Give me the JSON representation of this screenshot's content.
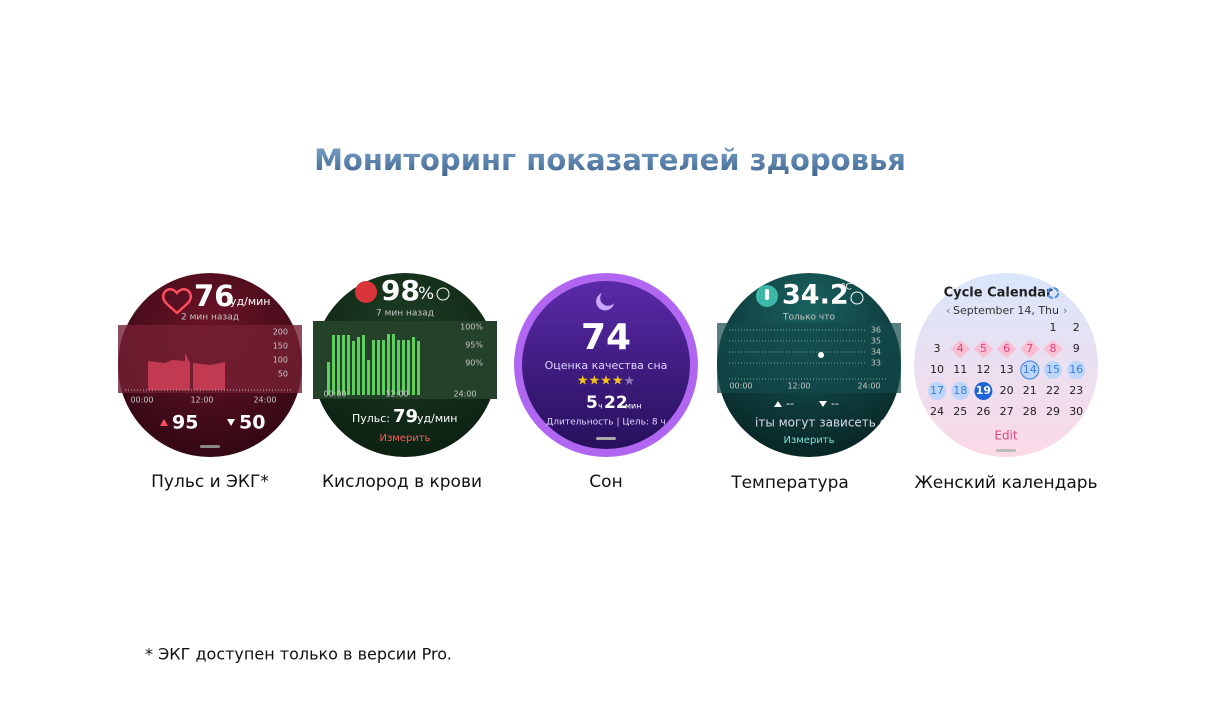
{
  "title": "Мониторинг показателей здоровья",
  "watches": [
    {
      "caption": "Пульс и ЭКГ*",
      "screen": {
        "value": "76",
        "unit": "уд/мин",
        "subtitle": "2 мин назад",
        "scale": [
          "200",
          "150",
          "100",
          "50"
        ],
        "times": [
          "00:00",
          "12:00",
          "24:00"
        ],
        "max": "95",
        "min": "50"
      }
    },
    {
      "caption": "Кислород в крови",
      "screen": {
        "value": "98",
        "unit": "%",
        "subtitle": "7 мин назад",
        "scale": [
          "100%",
          "95%",
          "90%"
        ],
        "times": [
          "00:00",
          "12:00",
          "24:00"
        ],
        "pulse_label": "Пульс:",
        "pulse_value": "79",
        "pulse_unit": "уд/мин",
        "action": "Измерить"
      }
    },
    {
      "caption": "Сон",
      "screen": {
        "value": "74",
        "label": "Оценка качества сна",
        "hours": "5",
        "hours_unit": "ч",
        "minutes": "22",
        "minutes_unit": "мин",
        "footer": "Длительность | Цель: 8 ч"
      }
    },
    {
      "caption": "Температура",
      "screen": {
        "value": "34.2",
        "unit": "°C",
        "subtitle": "Только что",
        "scale": [
          "36",
          "35",
          "34",
          "33"
        ],
        "times": [
          "00:00",
          "12:00",
          "24:00"
        ],
        "max": "--",
        "min": "--",
        "note": "іты могут зависеть с",
        "action": "Измерить"
      }
    },
    {
      "caption": "Женский календарь",
      "screen": {
        "title": "Cycle Calendar",
        "month": "September 14, Thu",
        "days": [
          [
            "1",
            "2"
          ],
          [
            "3",
            "4",
            "5",
            "6",
            "7",
            "8",
            "9"
          ],
          [
            "10",
            "11",
            "12",
            "13",
            "14",
            "15",
            "16"
          ],
          [
            "17",
            "18",
            "19",
            "20",
            "21",
            "22",
            "23"
          ],
          [
            "24",
            "25",
            "26",
            "27",
            "28",
            "29",
            "30"
          ]
        ],
        "action": "Edit"
      }
    }
  ],
  "footnote": "* ЭКГ доступен только в версии Pro."
}
